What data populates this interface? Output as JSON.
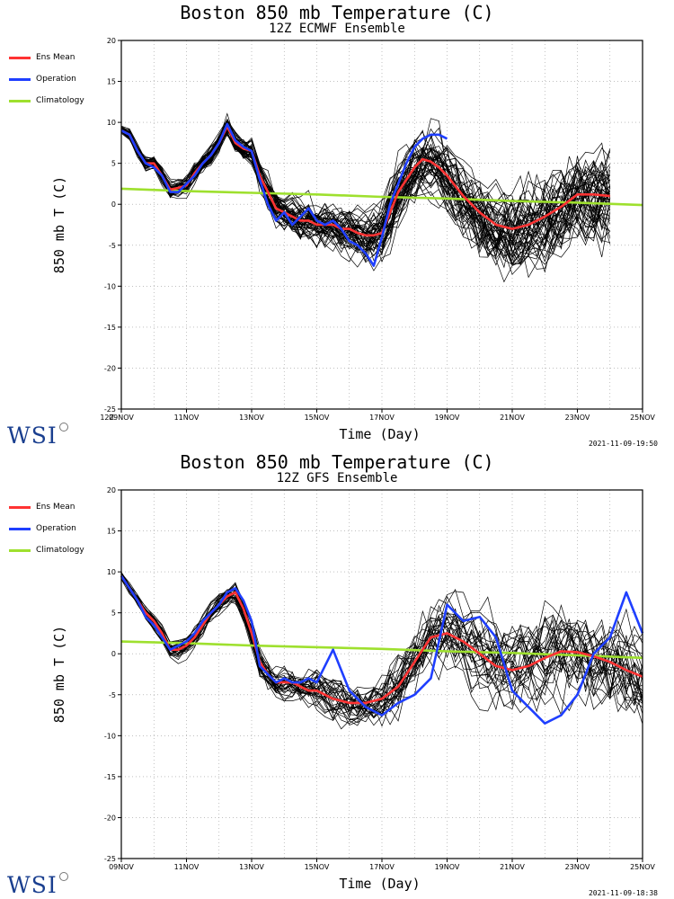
{
  "charts": [
    {
      "title": "Boston 850 mb Temperature (C)",
      "subtitle": "12Z ECMWF Ensemble",
      "xlabel": "Time (Day)",
      "ylabel": "850 mb T (C)",
      "timestamp": "2021-11-09-19:50",
      "logo": "WSI",
      "first_tick_prefix": "12Z",
      "ensemble_members": 50,
      "ensemble_end_day": 24.0
    },
    {
      "title": "Boston 850 mb Temperature (C)",
      "subtitle": "12Z GFS Ensemble",
      "xlabel": "Time (Day)",
      "ylabel": "850 mb T (C)",
      "timestamp": "2021-11-09-18:38",
      "logo": "WSI",
      "first_tick_prefix": "",
      "ensemble_members": 30,
      "ensemble_end_day": 25.0
    }
  ],
  "legend": [
    {
      "label": "Ens Mean",
      "color": "#ff3333"
    },
    {
      "label": "Operation",
      "color": "#1f3fff"
    },
    {
      "label": "Climatology",
      "color": "#9ee02e"
    }
  ],
  "chart_data": [
    {
      "type": "line",
      "title": "Boston 850 mb Temperature (C)",
      "subtitle": "12Z ECMWF Ensemble",
      "xlabel": "Time (Day)",
      "ylabel": "850 mb T (C)",
      "xlim": [
        9,
        25
      ],
      "ylim": [
        -25,
        20
      ],
      "x_ticks": [
        "09NOV",
        "11NOV",
        "13NOV",
        "15NOV",
        "17NOV",
        "19NOV",
        "21NOV",
        "23NOV",
        "25NOV"
      ],
      "y_ticks": [
        -25,
        -20,
        -15,
        -10,
        -5,
        0,
        5,
        10,
        15,
        20
      ],
      "grid": true,
      "legend_position": "left",
      "series": [
        {
          "name": "Ens Mean",
          "color": "#ff3333",
          "x": [
            9.0,
            9.25,
            9.5,
            9.75,
            10.0,
            10.25,
            10.5,
            10.75,
            11.0,
            11.25,
            11.5,
            11.75,
            12.0,
            12.25,
            12.5,
            12.75,
            13.0,
            13.25,
            13.5,
            13.75,
            14.0,
            14.25,
            14.5,
            14.75,
            15.0,
            15.25,
            15.5,
            15.75,
            16.0,
            16.25,
            16.5,
            16.75,
            17.0,
            17.25,
            17.5,
            17.75,
            18.0,
            18.25,
            18.5,
            18.75,
            19.0,
            19.5,
            20.0,
            20.5,
            21.0,
            21.5,
            22.0,
            22.5,
            23.0,
            23.5,
            24.0
          ],
          "y": [
            9,
            8.5,
            6.5,
            5,
            5,
            3.5,
            1.8,
            2,
            2.3,
            3.8,
            5,
            6,
            7.5,
            9.5,
            7.5,
            6.8,
            6.5,
            3.5,
            1.5,
            -0.5,
            -1,
            -1.5,
            -2,
            -2,
            -2.5,
            -2.5,
            -2.5,
            -3,
            -3,
            -3.5,
            -3.8,
            -3.8,
            -3.5,
            -1,
            1.5,
            3,
            4.5,
            5.5,
            5.2,
            4.5,
            3.5,
            1,
            -1,
            -2.5,
            -3,
            -2.5,
            -1.5,
            -0.3,
            1.2,
            1.2,
            1
          ]
        },
        {
          "name": "Operation",
          "color": "#1f3fff",
          "x": [
            9.0,
            9.25,
            9.5,
            9.75,
            10.0,
            10.25,
            10.5,
            10.75,
            11.0,
            11.25,
            11.5,
            11.75,
            12.0,
            12.25,
            12.5,
            12.75,
            13.0,
            13.25,
            13.5,
            13.75,
            14.0,
            14.25,
            14.5,
            14.75,
            15.0,
            15.25,
            15.5,
            15.75,
            16.0,
            16.25,
            16.5,
            16.75,
            17.0,
            17.25,
            17.5,
            17.75,
            18.0,
            18.25,
            18.5,
            18.75,
            19.0
          ],
          "y": [
            9,
            8.5,
            6.5,
            5,
            4.5,
            3.5,
            1.5,
            1.5,
            2.5,
            3.5,
            5,
            6,
            7.5,
            9.8,
            7.8,
            7,
            6.5,
            3,
            0,
            -2,
            -1,
            -2.5,
            -1.5,
            -0.5,
            -2,
            -2.5,
            -2,
            -3,
            -4.5,
            -5,
            -6,
            -7.5,
            -4,
            0,
            2.5,
            5,
            7,
            8,
            8.5,
            8.5,
            8
          ]
        },
        {
          "name": "Climatology",
          "color": "#9ee02e",
          "x": [
            9,
            11,
            13,
            15,
            17,
            19,
            21,
            23,
            25
          ],
          "y": [
            1.9,
            1.6,
            1.4,
            1.2,
            0.9,
            0.7,
            0.4,
            0.2,
            -0.1
          ]
        }
      ]
    },
    {
      "type": "line",
      "title": "Boston 850 mb Temperature (C)",
      "subtitle": "12Z GFS Ensemble",
      "xlabel": "Time (Day)",
      "ylabel": "850 mb T (C)",
      "xlim": [
        9,
        25
      ],
      "ylim": [
        -25,
        20
      ],
      "x_ticks": [
        "09NOV",
        "11NOV",
        "13NOV",
        "15NOV",
        "17NOV",
        "19NOV",
        "21NOV",
        "23NOV",
        "25NOV"
      ],
      "y_ticks": [
        -25,
        -20,
        -15,
        -10,
        -5,
        0,
        5,
        10,
        15,
        20
      ],
      "grid": true,
      "legend_position": "left",
      "series": [
        {
          "name": "Ens Mean",
          "color": "#ff3333",
          "x": [
            9.0,
            9.25,
            9.5,
            9.75,
            10.0,
            10.25,
            10.5,
            10.75,
            11.0,
            11.25,
            11.5,
            11.75,
            12.0,
            12.25,
            12.5,
            12.75,
            13.0,
            13.25,
            13.5,
            13.75,
            14.0,
            14.25,
            14.5,
            14.75,
            15.0,
            15.5,
            16.0,
            16.5,
            17.0,
            17.5,
            18.0,
            18.5,
            19.0,
            19.5,
            20.0,
            20.5,
            21.0,
            21.5,
            22.0,
            22.5,
            23.0,
            23.5,
            24.0,
            24.5,
            25.0
          ],
          "y": [
            9.5,
            8,
            6.5,
            5,
            4,
            2.5,
            0.5,
            0.5,
            1,
            2,
            3.5,
            5,
            6,
            7,
            7.5,
            5.5,
            2.5,
            -1,
            -2.5,
            -3.5,
            -3.5,
            -3.5,
            -4,
            -4.5,
            -4.5,
            -5.5,
            -6,
            -6,
            -5.5,
            -4,
            -1,
            2,
            2.5,
            1.5,
            0,
            -1.5,
            -2,
            -1.5,
            -0.5,
            0.3,
            0.2,
            -0.3,
            -1,
            -2,
            -2.8
          ]
        },
        {
          "name": "Operation",
          "color": "#1f3fff",
          "x": [
            9.0,
            9.25,
            9.5,
            9.75,
            10.0,
            10.25,
            10.5,
            10.75,
            11.0,
            11.25,
            11.5,
            11.75,
            12.0,
            12.25,
            12.5,
            12.75,
            13.0,
            13.25,
            13.5,
            13.75,
            14.0,
            14.25,
            14.5,
            14.75,
            15.0,
            15.5,
            16.0,
            16.5,
            17.0,
            17.5,
            18.0,
            18.5,
            19.0,
            19.5,
            20.0,
            20.5,
            21.0,
            21.5,
            22.0,
            22.5,
            23.0,
            23.5,
            24.0,
            24.5,
            25.0
          ],
          "y": [
            9.5,
            8,
            6.5,
            4.5,
            3.5,
            2,
            0.5,
            1,
            1.5,
            2.5,
            4,
            5,
            6,
            7.5,
            8,
            6.5,
            4,
            -1.5,
            -2.5,
            -3.5,
            -3,
            -3.5,
            -3.5,
            -3,
            -3.5,
            0.5,
            -4.5,
            -6.5,
            -7.5,
            -6,
            -5,
            -3,
            6,
            4,
            4.5,
            2,
            -4.5,
            -6.5,
            -8.5,
            -7.5,
            -5,
            0,
            2,
            7.5,
            2.5
          ]
        },
        {
          "name": "Climatology",
          "color": "#9ee02e",
          "x": [
            9,
            11,
            13,
            15,
            17,
            19,
            21,
            23,
            25
          ],
          "y": [
            1.5,
            1.3,
            1.0,
            0.8,
            0.6,
            0.3,
            0.1,
            -0.2,
            -0.5
          ]
        }
      ]
    }
  ]
}
